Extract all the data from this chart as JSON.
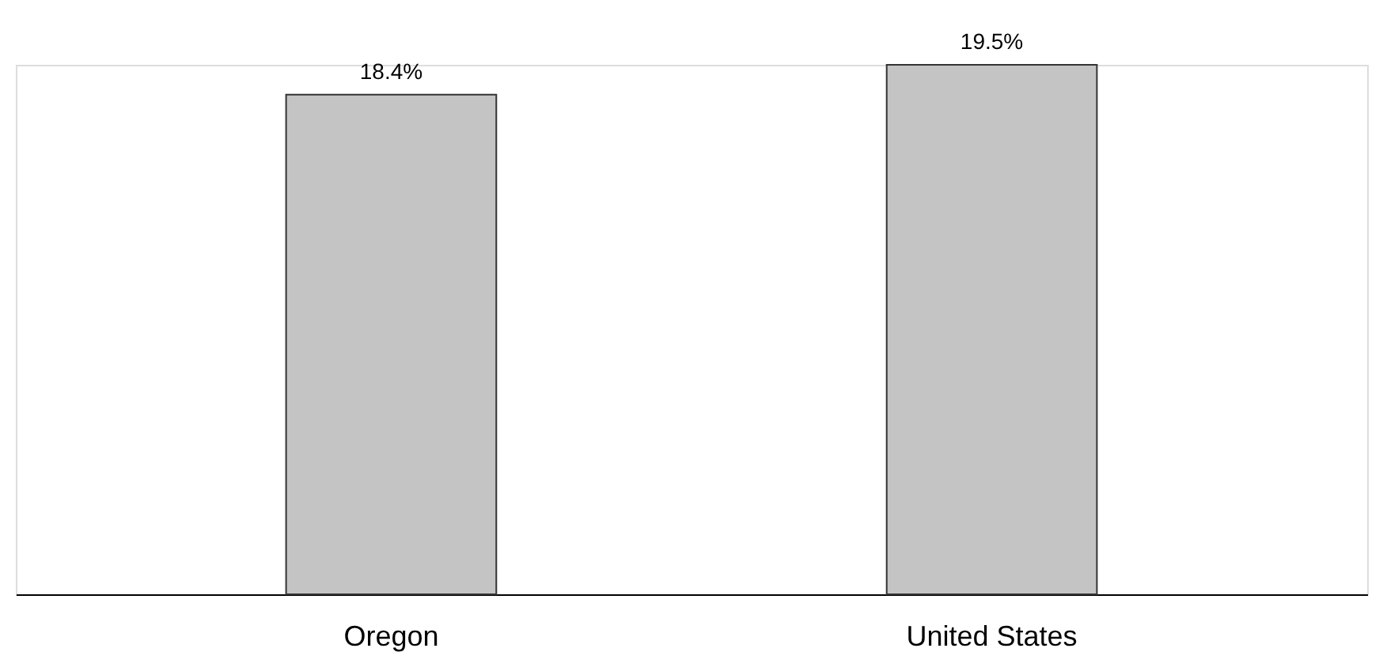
{
  "chart_data": {
    "type": "bar",
    "categories": [
      "Oregon",
      "United States"
    ],
    "values": [
      18.4,
      19.5
    ],
    "color": "#c4c4c4",
    "value_labels": [
      "18.4%",
      "19.5%"
    ]
  }
}
